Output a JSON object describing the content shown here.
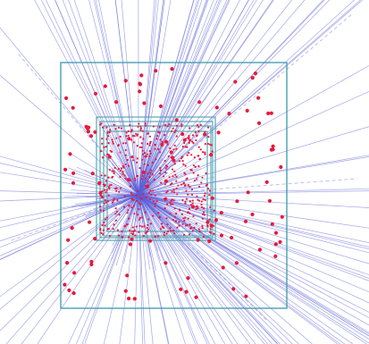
{
  "diagram": {
    "description": "",
    "colors": {
      "background": "#ffffff",
      "boxes": "#4a9fb0",
      "rays": "#5a5fd8",
      "dashed": "#8e93d6",
      "points": "#e8193c"
    }
  }
}
